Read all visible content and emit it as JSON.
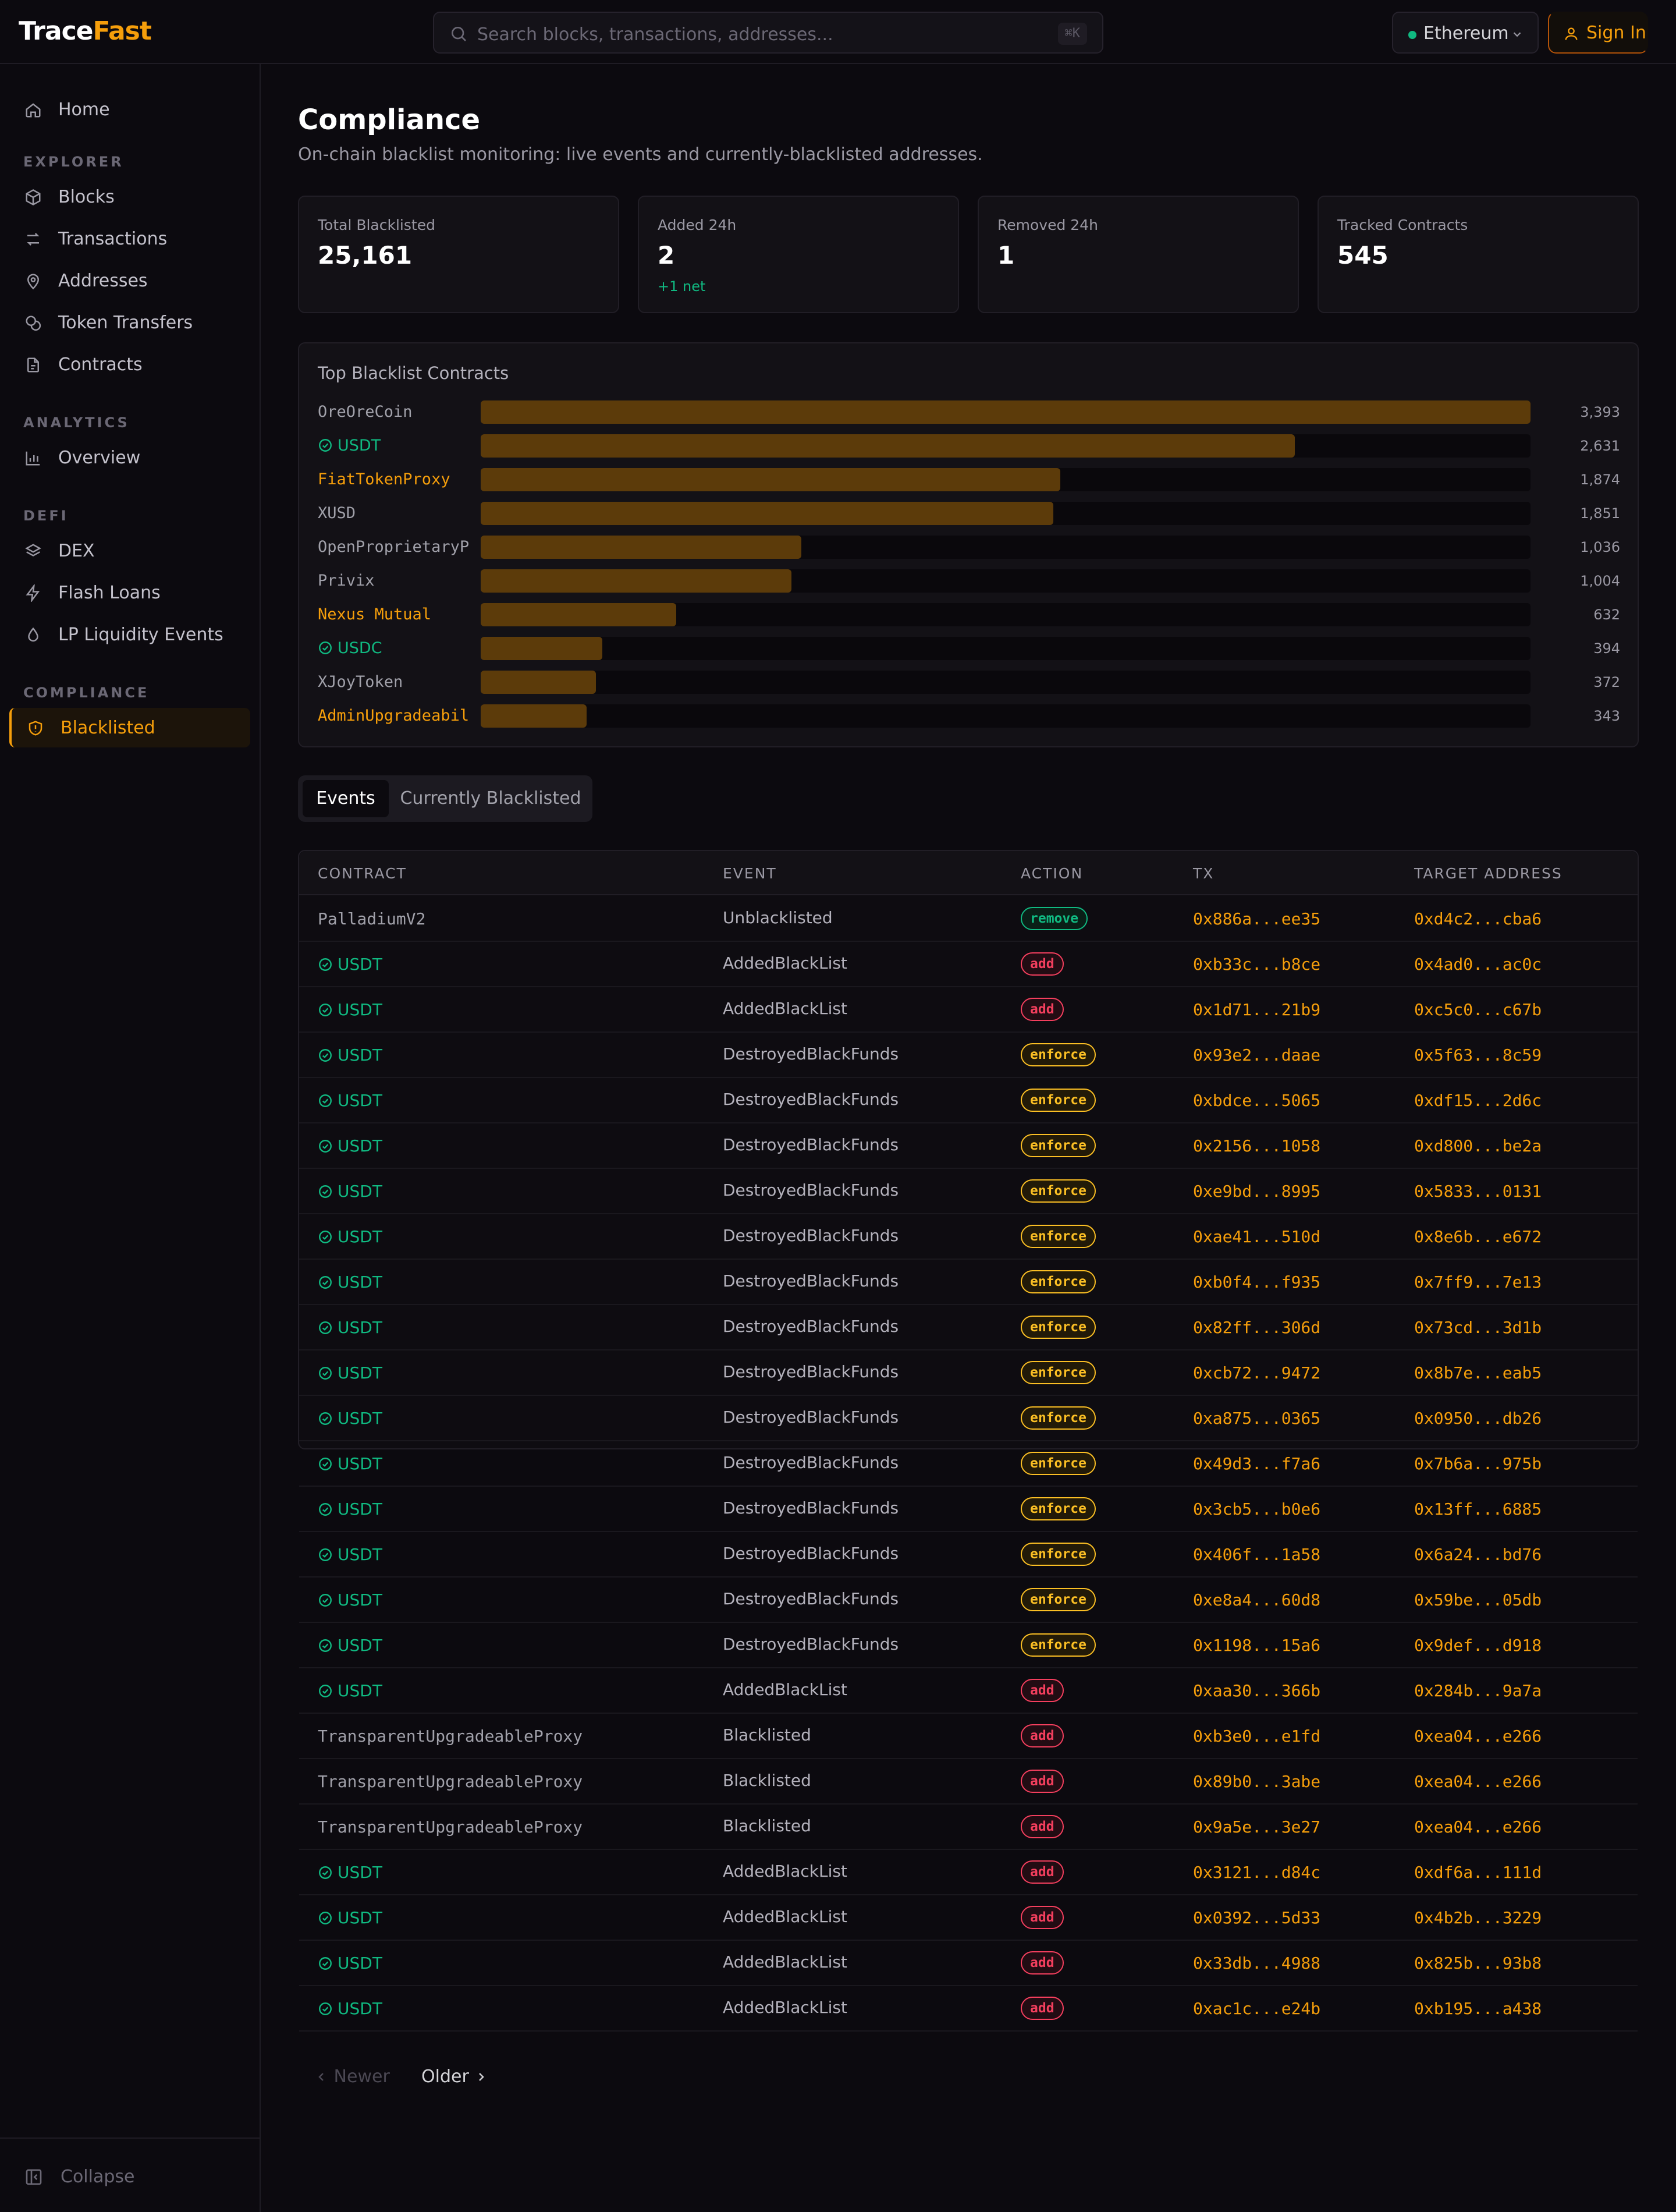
{
  "header": {
    "logo_main": "Trace",
    "logo_accent": "Fast",
    "search_placeholder": "Search blocks, transactions, addresses...",
    "search_shortcut": "⌘K",
    "network": "Ethereum",
    "signin_label": "Sign In"
  },
  "sidebar": {
    "home": "Home",
    "sections": {
      "explorer": "EXPLORER",
      "analytics": "ANALYTICS",
      "defi": "DEFI",
      "compliance": "COMPLIANCE"
    },
    "explorer_items": [
      "Blocks",
      "Transactions",
      "Addresses",
      "Token Transfers",
      "Contracts"
    ],
    "analytics_items": [
      "Overview"
    ],
    "defi_items": [
      "DEX",
      "Flash Loans",
      "LP Liquidity Events"
    ],
    "compliance_items": [
      "Blacklisted"
    ],
    "collapse": "Collapse"
  },
  "page": {
    "title": "Compliance",
    "subtitle": "On-chain blacklist monitoring: live events and currently-blacklisted addresses."
  },
  "stats": [
    {
      "label": "Total Blacklisted",
      "value": "25,161",
      "delta": ""
    },
    {
      "label": "Added 24h",
      "value": "2",
      "delta": "+1 net"
    },
    {
      "label": "Removed 24h",
      "value": "1",
      "delta": ""
    },
    {
      "label": "Tracked Contracts",
      "value": "545",
      "delta": ""
    }
  ],
  "chart_data": {
    "type": "bar",
    "title": "Top Blacklist Contracts",
    "categories": [
      "OreOreCoin",
      "USDT",
      "FiatTokenProxy",
      "XUSD",
      "OpenProprietaryP",
      "Privix",
      "Nexus Mutual",
      "USDC",
      "XJoyToken",
      "AdminUpgradeabil"
    ],
    "values": [
      3393,
      2631,
      1874,
      1851,
      1036,
      1004,
      632,
      394,
      372,
      343
    ],
    "value_labels": [
      "3,393",
      "2,631",
      "1,874",
      "1,851",
      "1,036",
      "1,004",
      "632",
      "394",
      "372",
      "343"
    ],
    "label_styles": [
      "plain",
      "verified",
      "gold",
      "plain",
      "plain",
      "plain",
      "gold",
      "verified",
      "plain",
      "gold"
    ],
    "xlim": [
      0,
      3393
    ]
  },
  "tabs": {
    "events": "Events",
    "blacklisted": "Currently Blacklisted"
  },
  "table": {
    "columns": [
      "CONTRACT",
      "EVENT",
      "ACTION",
      "TX",
      "TARGET ADDRESS"
    ],
    "rows": [
      {
        "contract": "PalladiumV2",
        "verified": false,
        "event": "Unblacklisted",
        "action": "remove",
        "tx": "0x886a...ee35",
        "target": "0xd4c2...cba6"
      },
      {
        "contract": "USDT",
        "verified": true,
        "event": "AddedBlackList",
        "action": "add",
        "tx": "0xb33c...b8ce",
        "target": "0x4ad0...ac0c"
      },
      {
        "contract": "USDT",
        "verified": true,
        "event": "AddedBlackList",
        "action": "add",
        "tx": "0x1d71...21b9",
        "target": "0xc5c0...c67b"
      },
      {
        "contract": "USDT",
        "verified": true,
        "event": "DestroyedBlackFunds",
        "action": "enforce",
        "tx": "0x93e2...daae",
        "target": "0x5f63...8c59"
      },
      {
        "contract": "USDT",
        "verified": true,
        "event": "DestroyedBlackFunds",
        "action": "enforce",
        "tx": "0xbdce...5065",
        "target": "0xdf15...2d6c"
      },
      {
        "contract": "USDT",
        "verified": true,
        "event": "DestroyedBlackFunds",
        "action": "enforce",
        "tx": "0x2156...1058",
        "target": "0xd800...be2a"
      },
      {
        "contract": "USDT",
        "verified": true,
        "event": "DestroyedBlackFunds",
        "action": "enforce",
        "tx": "0xe9bd...8995",
        "target": "0x5833...0131"
      },
      {
        "contract": "USDT",
        "verified": true,
        "event": "DestroyedBlackFunds",
        "action": "enforce",
        "tx": "0xae41...510d",
        "target": "0x8e6b...e672"
      },
      {
        "contract": "USDT",
        "verified": true,
        "event": "DestroyedBlackFunds",
        "action": "enforce",
        "tx": "0xb0f4...f935",
        "target": "0x7ff9...7e13"
      },
      {
        "contract": "USDT",
        "verified": true,
        "event": "DestroyedBlackFunds",
        "action": "enforce",
        "tx": "0x82ff...306d",
        "target": "0x73cd...3d1b"
      },
      {
        "contract": "USDT",
        "verified": true,
        "event": "DestroyedBlackFunds",
        "action": "enforce",
        "tx": "0xcb72...9472",
        "target": "0x8b7e...eab5"
      },
      {
        "contract": "USDT",
        "verified": true,
        "event": "DestroyedBlackFunds",
        "action": "enforce",
        "tx": "0xa875...0365",
        "target": "0x0950...db26"
      },
      {
        "contract": "USDT",
        "verified": true,
        "event": "DestroyedBlackFunds",
        "action": "enforce",
        "tx": "0x49d3...f7a6",
        "target": "0x7b6a...975b"
      },
      {
        "contract": "USDT",
        "verified": true,
        "event": "DestroyedBlackFunds",
        "action": "enforce",
        "tx": "0x3cb5...b0e6",
        "target": "0x13ff...6885"
      },
      {
        "contract": "USDT",
        "verified": true,
        "event": "DestroyedBlackFunds",
        "action": "enforce",
        "tx": "0x406f...1a58",
        "target": "0x6a24...bd76"
      },
      {
        "contract": "USDT",
        "verified": true,
        "event": "DestroyedBlackFunds",
        "action": "enforce",
        "tx": "0xe8a4...60d8",
        "target": "0x59be...05db"
      },
      {
        "contract": "USDT",
        "verified": true,
        "event": "DestroyedBlackFunds",
        "action": "enforce",
        "tx": "0x1198...15a6",
        "target": "0x9def...d918"
      },
      {
        "contract": "USDT",
        "verified": true,
        "event": "AddedBlackList",
        "action": "add",
        "tx": "0xaa30...366b",
        "target": "0x284b...9a7a"
      },
      {
        "contract": "TransparentUpgradeableProxy",
        "verified": false,
        "event": "Blacklisted",
        "action": "add",
        "tx": "0xb3e0...e1fd",
        "target": "0xea04...e266"
      },
      {
        "contract": "TransparentUpgradeableProxy",
        "verified": false,
        "event": "Blacklisted",
        "action": "add",
        "tx": "0x89b0...3abe",
        "target": "0xea04...e266"
      },
      {
        "contract": "TransparentUpgradeableProxy",
        "verified": false,
        "event": "Blacklisted",
        "action": "add",
        "tx": "0x9a5e...3e27",
        "target": "0xea04...e266"
      },
      {
        "contract": "USDT",
        "verified": true,
        "event": "AddedBlackList",
        "action": "add",
        "tx": "0x3121...d84c",
        "target": "0xdf6a...111d"
      },
      {
        "contract": "USDT",
        "verified": true,
        "event": "AddedBlackList",
        "action": "add",
        "tx": "0x0392...5d33",
        "target": "0x4b2b...3229"
      },
      {
        "contract": "USDT",
        "verified": true,
        "event": "AddedBlackList",
        "action": "add",
        "tx": "0x33db...4988",
        "target": "0x825b...93b8"
      },
      {
        "contract": "USDT",
        "verified": true,
        "event": "AddedBlackList",
        "action": "add",
        "tx": "0xac1c...e24b",
        "target": "0xb195...a438"
      }
    ]
  },
  "pager": {
    "newer": "Newer",
    "older": "Older"
  }
}
